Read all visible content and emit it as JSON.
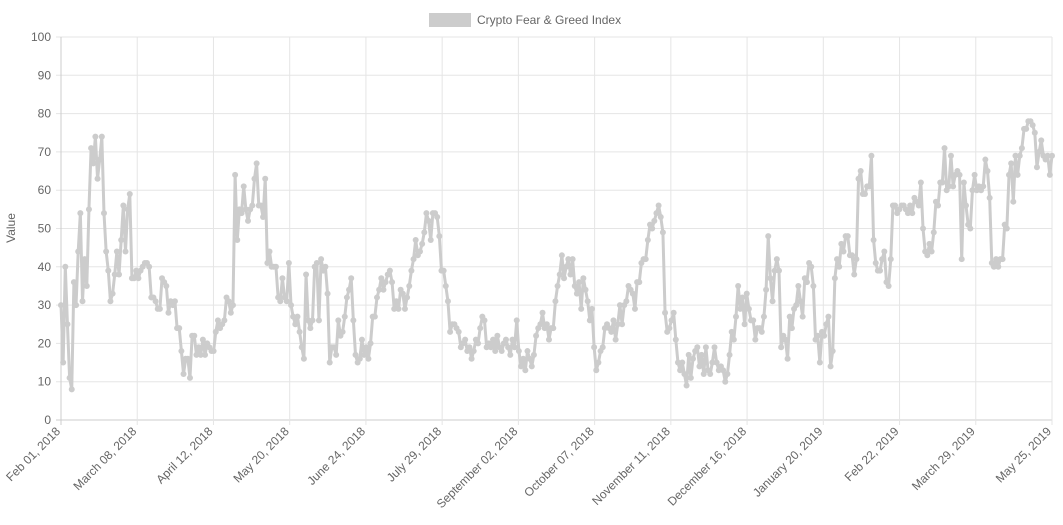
{
  "chart_data": {
    "type": "line",
    "series": [
      {
        "name": "Crypto Fear & Greed Index",
        "color": "#cccccc",
        "x_start": "Feb 01, 2018",
        "x_end": "May 25, 2019",
        "values": [
          30,
          15,
          40,
          25,
          11,
          8,
          36,
          30,
          44,
          54,
          31,
          42,
          35,
          55,
          71,
          67,
          74,
          63,
          68,
          74,
          54,
          44,
          39,
          31,
          33,
          38,
          44,
          38,
          47,
          56,
          44,
          55,
          59,
          37,
          37,
          39,
          37,
          39,
          40,
          41,
          41,
          40,
          32,
          32,
          31,
          29,
          29,
          37,
          36,
          35,
          28,
          31,
          30,
          31,
          24,
          24,
          18,
          12,
          16,
          16,
          11,
          22,
          22,
          17,
          19,
          17,
          21,
          17,
          20,
          19,
          18,
          18,
          23,
          26,
          24,
          25,
          26,
          32,
          31,
          28,
          30,
          64,
          47,
          55,
          54,
          61,
          55,
          52,
          55,
          56,
          63,
          67,
          56,
          56,
          53,
          63,
          41,
          44,
          40,
          40,
          40,
          32,
          31,
          37,
          32,
          31,
          41,
          30,
          27,
          25,
          27,
          23,
          19,
          16,
          38,
          26,
          24,
          26,
          40,
          41,
          26,
          42,
          39,
          40,
          33,
          15,
          19,
          19,
          17,
          26,
          22,
          23,
          27,
          32,
          34,
          37,
          26,
          17,
          15,
          16,
          21,
          17,
          19,
          16,
          20,
          27,
          27,
          32,
          34,
          37,
          34,
          36,
          38,
          39,
          36,
          29,
          31,
          29,
          34,
          33,
          29,
          32,
          35,
          39,
          42,
          47,
          43,
          44,
          46,
          49,
          54,
          52,
          47,
          54,
          54,
          53,
          48,
          39,
          39,
          35,
          31,
          23,
          25,
          25,
          24,
          23,
          19,
          20,
          21,
          18,
          19,
          16,
          18,
          21,
          20,
          24,
          27,
          26,
          19,
          20,
          19,
          21,
          18,
          22,
          19,
          18,
          20,
          21,
          19,
          17,
          21,
          19,
          26,
          18,
          14,
          16,
          13,
          18,
          16,
          14,
          17,
          22,
          24,
          25,
          28,
          24,
          25,
          21,
          24,
          24,
          31,
          35,
          38,
          43,
          37,
          40,
          42,
          38,
          42,
          35,
          33,
          36,
          29,
          37,
          34,
          31,
          26,
          29,
          19,
          13,
          15,
          18,
          19,
          24,
          25,
          24,
          23,
          26,
          21,
          25,
          30,
          25,
          30,
          31,
          35,
          34,
          33,
          29,
          36,
          36,
          41,
          42,
          42,
          47,
          51,
          50,
          52,
          54,
          56,
          53,
          49,
          28,
          23,
          24,
          26,
          28,
          21,
          15,
          13,
          15,
          12,
          9,
          17,
          11,
          16,
          18,
          19,
          14,
          17,
          12,
          19,
          13,
          12,
          15,
          19,
          15,
          13,
          14,
          13,
          10,
          12,
          17,
          23,
          21,
          27,
          35,
          29,
          32,
          25,
          33,
          29,
          26,
          26,
          21,
          24,
          24,
          23,
          27,
          34,
          48,
          37,
          31,
          39,
          42,
          39,
          19,
          22,
          21,
          16,
          27,
          24,
          29,
          30,
          35,
          31,
          27,
          37,
          36,
          41,
          40,
          35,
          21,
          22,
          15,
          23,
          22,
          25,
          27,
          14,
          18,
          37,
          42,
          40,
          46,
          44,
          48,
          48,
          43,
          43,
          38,
          42,
          63,
          65,
          59,
          59,
          61,
          61,
          69,
          47,
          41,
          39,
          39,
          42,
          44,
          36,
          35,
          42,
          56,
          56,
          54,
          55,
          56,
          56,
          55,
          54,
          56,
          54,
          58,
          57,
          56,
          62,
          50,
          44,
          43,
          46,
          44,
          49,
          57,
          56,
          62,
          62,
          71,
          60,
          61,
          69,
          61,
          64,
          65,
          64,
          42,
          62,
          56,
          51,
          50,
          60,
          64,
          60,
          61,
          60,
          61,
          68,
          65,
          58,
          41,
          40,
          42,
          40,
          42,
          42,
          51,
          50,
          64,
          67,
          57,
          69,
          64,
          69,
          71,
          76,
          76,
          78,
          78,
          77,
          75,
          66,
          70,
          73,
          69,
          68,
          69,
          64,
          69
        ]
      }
    ],
    "x_ticks": [
      "Feb 01, 2018",
      "March 08, 2018",
      "April 12, 2018",
      "May 20, 2018",
      "June 24, 2018",
      "July 29, 2018",
      "September 02, 2018",
      "October 07, 2018",
      "November 11, 2018",
      "December 16, 2018",
      "January 20, 2019",
      "Feb 22, 2019",
      "March 29, 2019",
      "May 25, 2019"
    ],
    "y_ticks": [
      "0",
      "10",
      "20",
      "30",
      "40",
      "50",
      "60",
      "70",
      "80",
      "90",
      "100"
    ],
    "xlabel": "",
    "ylabel": "Value",
    "ylim": [
      0,
      100
    ],
    "grid": true,
    "legend": "top-center",
    "colors": {
      "line": "#cccccc",
      "grid": "#e5e5e5",
      "axis": "#cccccc",
      "text": "#666666"
    }
  }
}
